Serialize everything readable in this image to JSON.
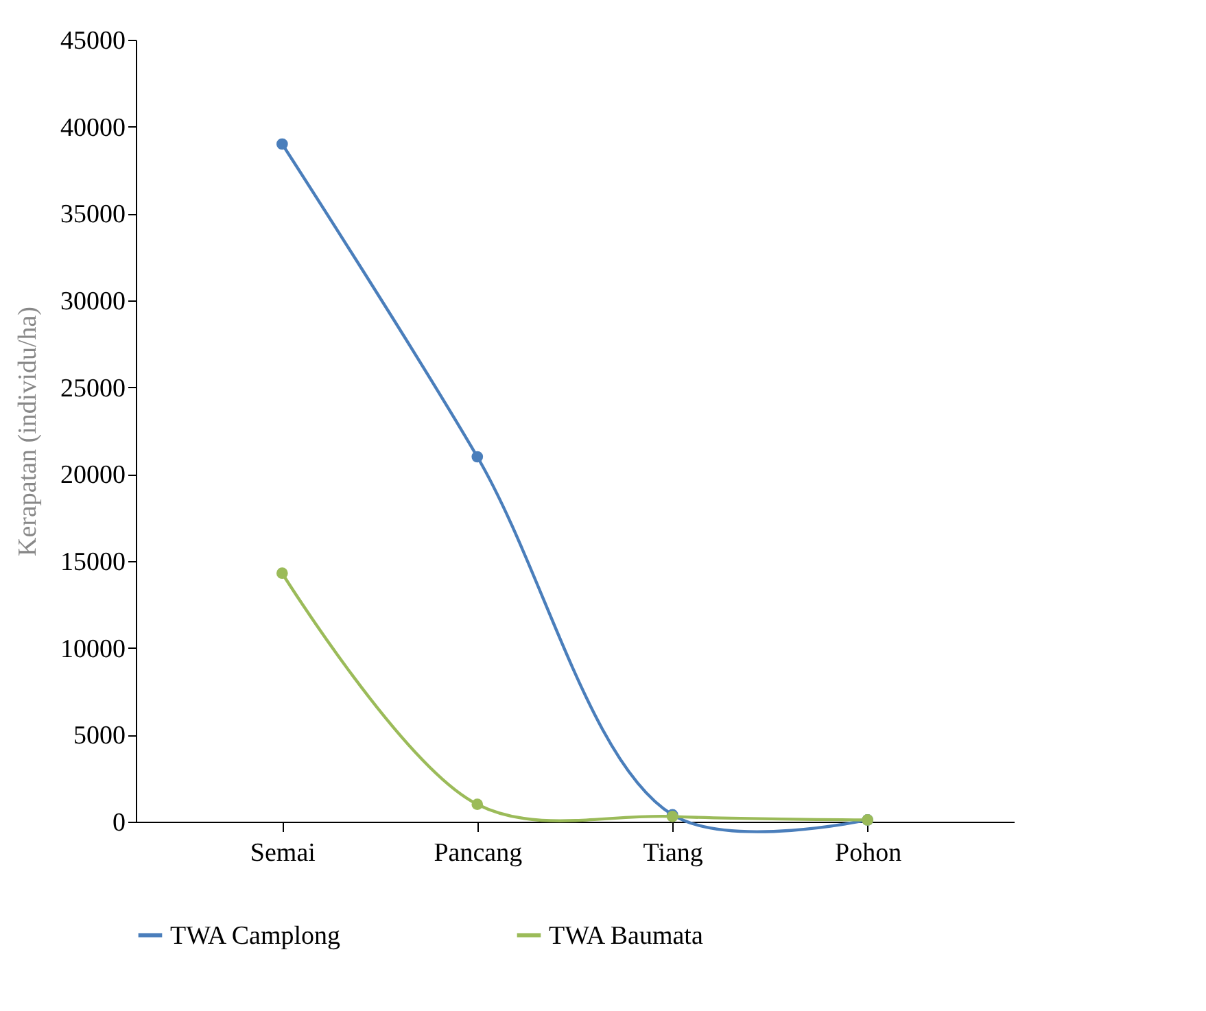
{
  "chart_data": {
    "type": "line",
    "ylabel": "Kerapatan  (individu/ha)",
    "categories": [
      "Semai",
      "Pancang",
      "Tiang",
      "Pohon"
    ],
    "series": [
      {
        "name": "TWA Camplong",
        "color": "#4a7ebb",
        "values": [
          39000,
          21000,
          400,
          100
        ]
      },
      {
        "name": "TWA Baumata",
        "color": "#9bbb59",
        "values": [
          14300,
          1000,
          300,
          100
        ]
      }
    ],
    "ylim": [
      0,
      45000
    ],
    "yticks": [
      0,
      5000,
      10000,
      15000,
      20000,
      25000,
      30000,
      35000,
      40000,
      45000
    ],
    "grid": false,
    "legend": "bottom",
    "marker": "circle",
    "line_style": "solid"
  }
}
